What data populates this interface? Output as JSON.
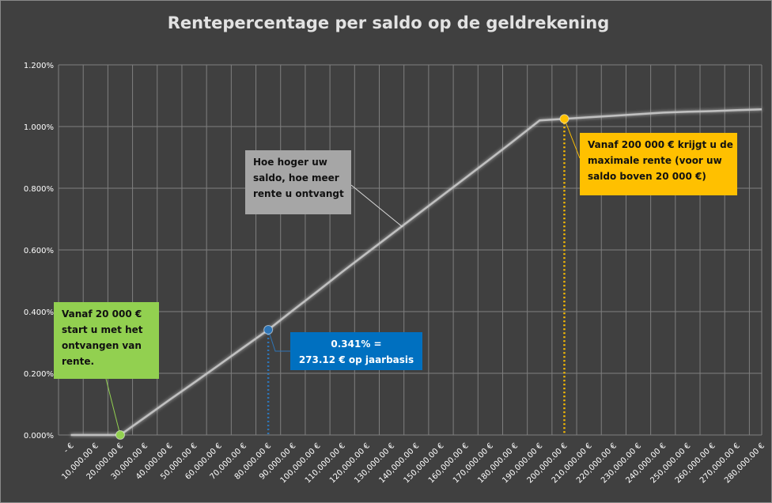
{
  "chart_data": {
    "type": "line",
    "title": "Rentepercentage per saldo op de geldrekening",
    "xlabel": "",
    "ylabel": "",
    "x_tick_labels": [
      "-   €",
      "10,000.00 €",
      "20,000.00 €",
      "30,000.00 €",
      "40,000.00 €",
      "50,000.00 €",
      "60,000.00 €",
      "70,000.00 €",
      "80,000.00 €",
      "90,000.00 €",
      "100,000.00 €",
      "110,000.00 €",
      "120,000.00 €",
      "130,000.00 €",
      "140,000.00 €",
      "150,000.00 €",
      "160,000.00 €",
      "170,000.00 €",
      "180,000.00 €",
      "190,000.00 €",
      "200,000.00 €",
      "210,000.00 €",
      "220,000.00 €",
      "230,000.00 €",
      "240,000.00 €",
      "250,000.00 €",
      "260,000.00 €",
      "270,000.00 €",
      "280,000.00 €"
    ],
    "y_tick_labels": [
      "0.000%",
      "0.200%",
      "0.400%",
      "0.600%",
      "0.800%",
      "1.000%",
      "1.200%"
    ],
    "ylim": [
      0,
      1.2
    ],
    "y_unit": "%",
    "grid": true,
    "series": [
      {
        "x": [
          0,
          10000,
          20000,
          30000,
          40000,
          50000,
          60000,
          70000,
          80000,
          90000,
          100000,
          110000,
          120000,
          130000,
          140000,
          150000,
          160000,
          170000,
          180000,
          190000,
          200000,
          210000,
          220000,
          230000,
          240000,
          250000,
          260000,
          270000,
          280000
        ],
        "y": [
          0,
          0,
          0,
          0.057,
          0.114,
          0.17,
          0.227,
          0.284,
          0.341,
          0.404,
          0.466,
          0.529,
          0.59,
          0.651,
          0.712,
          0.773,
          0.834,
          0.895,
          0.957,
          1.02,
          1.025,
          1.03,
          1.035,
          1.04,
          1.045,
          1.048,
          1.05,
          1.053,
          1.056
        ],
        "color": "#c0c0c0"
      }
    ],
    "markers": [
      {
        "x": 20000,
        "y": 0,
        "color": "#92d050"
      },
      {
        "x": 80000,
        "y": 0.341,
        "color": "#2e75b6"
      },
      {
        "x": 200000,
        "y": 1.025,
        "color": "#ffc000"
      }
    ],
    "annotations": [
      {
        "lines": [
          "Vanaf 20 000 €",
          "start u met het",
          "ontvangen van",
          "rente."
        ],
        "bg": "#92d050",
        "fg": "#111111"
      },
      {
        "lines": [
          "Hoe hoger uw",
          "saldo, hoe meer",
          "rente u ontvangt"
        ],
        "bg": "#a6a6a6",
        "fg": "#111111"
      },
      {
        "lines": [
          "0.341% =",
          "273.12 € op jaarbasis"
        ],
        "bg": "#0070c0",
        "fg": "#ffffff"
      },
      {
        "lines": [
          "Vanaf 200 000 € krijgt u de",
          "maximale rente (voor uw",
          "saldo boven 20 000 €)"
        ],
        "bg": "#ffc000",
        "fg": "#111111"
      }
    ]
  }
}
